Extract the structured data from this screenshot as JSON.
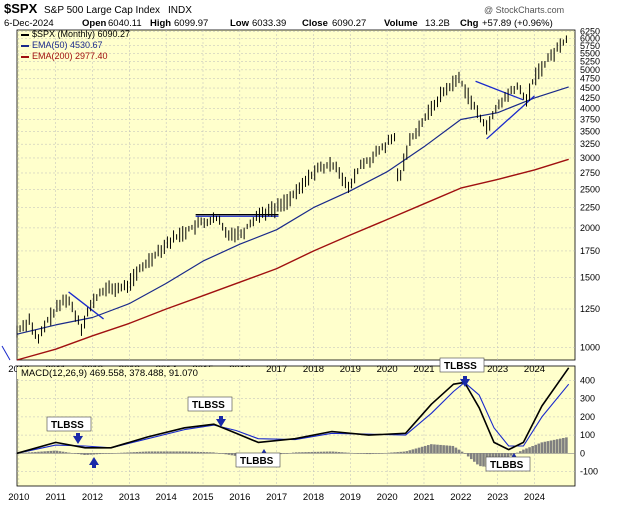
{
  "header": {
    "symbol": "$SPX",
    "name": "S&P 500 Large Cap Index",
    "exchange": "INDX",
    "watermark": "@ StockCharts.com",
    "date": "6-Dec-2024",
    "open_label": "Open",
    "open": "6040.11",
    "high_label": "High",
    "high": "6099.97",
    "low_label": "Low",
    "low": "6033.39",
    "close_label": "Close",
    "close": "6090.27",
    "volume_label": "Volume",
    "volume": "13.2B",
    "chg_label": "Chg",
    "chg": "+57.89 (+0.96%)"
  },
  "legend": [
    {
      "label": "$SPX (Monthly) 6090.27",
      "color": "#000000"
    },
    {
      "label": "EMA(50) 4530.67",
      "color": "#1a2a8a"
    },
    {
      "label": "EMA(200) 2977.40",
      "color": "#a01010"
    }
  ],
  "macd_label": "MACD(12,26,9) 469.558, 378.488, 91.070",
  "annotations": [
    "TLBSS",
    "TLBSS",
    "TLBBS",
    "TLBBS",
    "TLBSS",
    "TLBBS"
  ],
  "colors": {
    "panel_bg": "#ffffcc",
    "price": "#000000",
    "ema50": "#1a2a8a",
    "ema200": "#a01010",
    "trendline": "#1a2acc",
    "signal": "#1a2acc",
    "histogram": "#808080",
    "callout": "#1a2aa8"
  },
  "chart_data": [
    {
      "type": "line",
      "title": "$SPX S&P 500 Large Cap Index INDX",
      "scale": "log",
      "ylim": [
        930,
        6300
      ],
      "y_ticks": [
        1000,
        1250,
        1500,
        1750,
        2000,
        2250,
        2500,
        2750,
        3000,
        3250,
        3500,
        3750,
        4000,
        4250,
        4500,
        4750,
        5000,
        5250,
        5500,
        5750,
        6000,
        6250
      ],
      "x_ticks": [
        "2010",
        "2011",
        "2012",
        "2013",
        "2014",
        "2015",
        "2016",
        "2017",
        "2018",
        "2019",
        "2020",
        "2021",
        "2022",
        "2023",
        "2024"
      ],
      "grid": true,
      "legend_position": "top-left",
      "series": [
        {
          "name": "$SPX (Monthly)",
          "x": [
            2009.95,
            2010.3,
            2010.5,
            2010.8,
            2011.3,
            2011.7,
            2012.0,
            2012.3,
            2012.9,
            2013.5,
            2014.0,
            2014.5,
            2014.95,
            2015.4,
            2015.6,
            2016.05,
            2016.5,
            2016.95,
            2017.5,
            2018.05,
            2018.6,
            2018.95,
            2019.3,
            2019.5,
            2019.95,
            2020.2,
            2020.3,
            2020.6,
            2021.0,
            2021.5,
            2021.95,
            2022.5,
            2022.75,
            2023.0,
            2023.5,
            2023.8,
            2024.0,
            2024.5,
            2024.93
          ],
          "values": [
            1100,
            1180,
            1030,
            1180,
            1340,
            1130,
            1300,
            1400,
            1420,
            1650,
            1830,
            1960,
            2060,
            2110,
            1950,
            1940,
            2170,
            2240,
            2430,
            2800,
            2900,
            2500,
            2900,
            2950,
            3230,
            3380,
            2580,
            3300,
            3750,
            4380,
            4770,
            3800,
            3600,
            4050,
            4550,
            4200,
            4800,
            5500,
            6090
          ]
        },
        {
          "name": "EMA(50)",
          "x": [
            2009.95,
            2011.0,
            2012.0,
            2013.0,
            2014.0,
            2015.0,
            2016.0,
            2017.0,
            2018.0,
            2019.0,
            2020.0,
            2021.0,
            2022.0,
            2023.0,
            2024.0,
            2024.93
          ],
          "values": [
            1080,
            1140,
            1190,
            1290,
            1450,
            1650,
            1820,
            1980,
            2250,
            2480,
            2770,
            3200,
            3750,
            3900,
            4250,
            4530
          ]
        },
        {
          "name": "EMA(200)",
          "x": [
            2009.95,
            2011.0,
            2012.0,
            2013.0,
            2014.0,
            2015.0,
            2016.0,
            2017.0,
            2018.0,
            2019.0,
            2020.0,
            2021.0,
            2022.0,
            2023.0,
            2024.0,
            2024.93
          ],
          "values": [
            930,
            990,
            1070,
            1150,
            1250,
            1350,
            1460,
            1580,
            1750,
            1920,
            2100,
            2300,
            2520,
            2650,
            2800,
            2977
          ]
        }
      ]
    },
    {
      "type": "line",
      "title": "MACD(12,26,9) 469.558, 378.488, 91.070",
      "ylim": [
        -180,
        480
      ],
      "y_ticks": [
        -100,
        0,
        100,
        200,
        300,
        400
      ],
      "x_ticks": [
        "2010",
        "2011",
        "2012",
        "2013",
        "2014",
        "2015",
        "2016",
        "2017",
        "2018",
        "2019",
        "2020",
        "2021",
        "2022",
        "2023",
        "2024"
      ],
      "grid": true,
      "series": [
        {
          "name": "MACD",
          "x": [
            2009.95,
            2011.0,
            2011.8,
            2012.5,
            2013.5,
            2014.5,
            2015.3,
            2015.9,
            2016.5,
            2017.5,
            2018.5,
            2019.5,
            2020.5,
            2021.2,
            2021.8,
            2022.1,
            2022.5,
            2022.9,
            2023.3,
            2023.7,
            2024.2,
            2024.93
          ],
          "values": [
            0,
            60,
            30,
            30,
            90,
            140,
            160,
            110,
            60,
            80,
            120,
            100,
            110,
            270,
            380,
            390,
            250,
            60,
            20,
            60,
            260,
            470
          ]
        },
        {
          "name": "Signal",
          "x": [
            2009.95,
            2011.0,
            2011.8,
            2012.5,
            2013.5,
            2014.5,
            2015.3,
            2015.9,
            2016.5,
            2017.5,
            2018.5,
            2019.5,
            2020.5,
            2021.2,
            2021.8,
            2022.1,
            2022.5,
            2022.9,
            2023.3,
            2023.7,
            2024.2,
            2024.93
          ],
          "values": [
            0,
            45,
            40,
            30,
            80,
            130,
            155,
            125,
            80,
            75,
            110,
            105,
            100,
            220,
            340,
            390,
            320,
            140,
            40,
            40,
            200,
            380
          ]
        },
        {
          "name": "Histogram",
          "x": [
            2009.95,
            2011.0,
            2011.8,
            2012.5,
            2013.5,
            2014.5,
            2015.3,
            2015.9,
            2016.5,
            2017.5,
            2018.5,
            2019.5,
            2020.5,
            2021.2,
            2021.8,
            2022.1,
            2022.5,
            2022.9,
            2023.3,
            2023.7,
            2024.2,
            2024.93
          ],
          "values": [
            0,
            15,
            -10,
            0,
            10,
            10,
            5,
            -15,
            -20,
            5,
            10,
            -5,
            10,
            50,
            40,
            0,
            -70,
            -80,
            -20,
            20,
            60,
            90
          ]
        }
      ]
    }
  ]
}
